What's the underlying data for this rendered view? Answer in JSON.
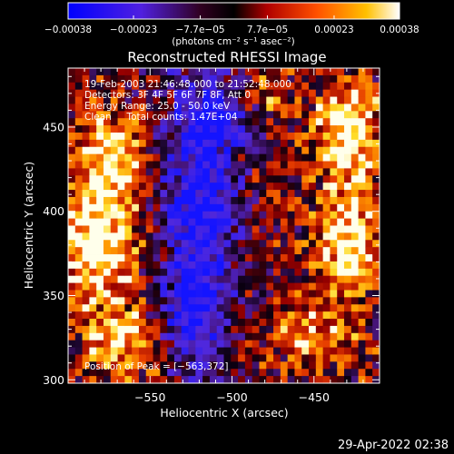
{
  "chart_data": {
    "type": "heatmap",
    "title": "Reconstructed RHESSI Image",
    "xlabel": "Heliocentric X (arcsec)",
    "ylabel": "Heliocentric Y (arcsec)",
    "xlim": [
      -600,
      -410
    ],
    "ylim": [
      298,
      485
    ],
    "x_ticks": [
      -550,
      -500,
      -450
    ],
    "x_tick_labels": [
      "−550",
      "−500",
      "−450"
    ],
    "y_ticks": [
      300,
      350,
      400,
      450
    ],
    "y_tick_labels": [
      "300",
      "350",
      "400",
      "450"
    ],
    "colorbar": {
      "range": [
        -0.00038,
        0.00038
      ],
      "ticks": [
        -0.00038,
        -0.00023,
        -7.7e-05,
        7.7e-05,
        0.00023,
        0.00038
      ],
      "tick_labels": [
        "−0.00038",
        "−0.00023",
        "−7.7e−05",
        "7.7e−05",
        "0.00023",
        "0.00038"
      ],
      "unit_label": "(photons cm⁻² s⁻¹ asec⁻²)",
      "colors": [
        "#0000ff",
        "#6020d0",
        "#000000",
        "#c00000",
        "#ff6000",
        "#ffc000",
        "#ffffff"
      ]
    },
    "annotations": [
      "19-Feb-2003 21:46:48.000 to 21:52:48.000",
      "Detectors: 3F 4F 5F 6F 7F 8F, Att 0",
      "Energy Range: 25.0 - 50.0 keV",
      "Clean     Total counts: 1.47E+04"
    ],
    "peak_text": "Position of Peak = [−563,372]",
    "peak": {
      "x": -563,
      "y": 372
    }
  },
  "footer": {
    "timestamp": "29-Apr-2022 02:38"
  }
}
